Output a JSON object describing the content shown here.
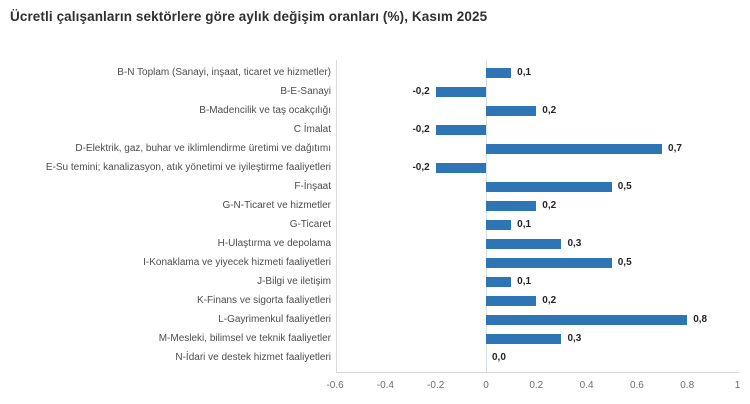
{
  "title": "Ücretli çalışanların sektörlere göre aylık değişim oranları (%), Kasım 2025",
  "chart_data": {
    "type": "bar",
    "orientation": "horizontal",
    "title": "Ücretli çalışanların sektörlere göre aylık değişim oranları (%), Kasım 2025",
    "categories": [
      "B-N Toplam (Sanayi, inşaat, ticaret ve hizmetler)",
      "B-E-Sanayi",
      "B-Madencilik ve taş ocakçılığı",
      "C İmalat",
      "D-Elektrik, gaz, buhar ve iklimlendirme üretimi ve dağıtımı",
      "E-Su temini; kanalizasyon, atık yönetimi ve iyileştirme faaliyetleri",
      "F-İnşaat",
      "G-N-Ticaret ve hizmetler",
      "G-Ticaret",
      "H-Ulaştırma ve depolama",
      "I-Konaklama ve yiyecek hizmeti faaliyetleri",
      "J-Bilgi ve iletişim",
      "K-Finans ve sigorta faaliyetleri",
      "L-Gayrimenkul faaliyetleri",
      "M-Mesleki, bilimsel ve teknik faaliyetler",
      "N-İdari ve destek hizmet faaliyetleri"
    ],
    "values": [
      0.1,
      -0.2,
      0.2,
      -0.2,
      0.7,
      -0.2,
      0.5,
      0.2,
      0.1,
      0.3,
      0.5,
      0.1,
      0.2,
      0.8,
      0.3,
      0.0
    ],
    "value_labels": [
      "0,1",
      "-0,2",
      "0,2",
      "-0,2",
      "0,7",
      "-0,2",
      "0,5",
      "0,2",
      "0,1",
      "0,3",
      "0,5",
      "0,1",
      "0,2",
      "0,8",
      "0,3",
      "0,0"
    ],
    "x_ticks": [
      "-0.6",
      "-0.4",
      "-0.2",
      "0",
      "0.2",
      "0.4",
      "0.6",
      "0.8",
      "1"
    ],
    "xlim": [
      -0.6,
      1
    ],
    "bar_color": "#2E75B6",
    "legend": "none",
    "grid": "zero-line-only",
    "decimal_style": {
      "bar_labels": "comma",
      "axis_ticks": "dot"
    }
  }
}
